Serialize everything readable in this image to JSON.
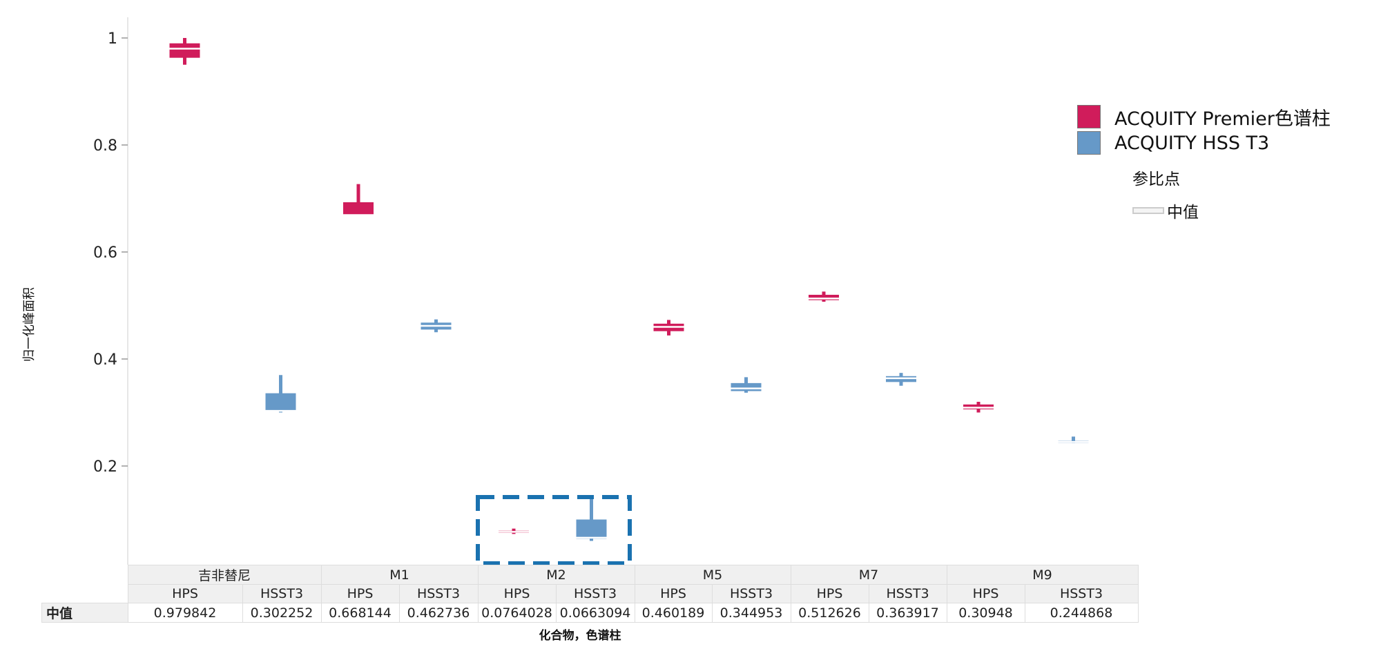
{
  "chart_data": {
    "type": "boxplot",
    "ylabel": "归一化峰面积",
    "xlabel": "化合物，色谱柱",
    "yticks": [
      0.2,
      0.4,
      0.6,
      0.8,
      1
    ],
    "ytick_labels": [
      "0.2",
      "0.4",
      "0.6",
      "0.8",
      "1"
    ],
    "ylim": [
      0.0,
      1.04
    ],
    "grid": false,
    "legend_position": "right",
    "series": [
      {
        "name": "ACQUITY Premier色谱柱",
        "color": "#d01c5b"
      },
      {
        "name": "ACQUITY HSS T3",
        "color": "#6699c8"
      }
    ],
    "groups": [
      "吉非替尼",
      "M1",
      "M2",
      "M5",
      "M7",
      "M9"
    ],
    "columns": [
      "HPS",
      "HSST3",
      "HPS",
      "HSST3",
      "HPS",
      "HSST3",
      "HPS",
      "HSST3",
      "HPS",
      "HSST3",
      "HPS",
      "HSST3"
    ],
    "median_row_label": "中值",
    "medians": [
      "0.979842",
      "0.302252",
      "0.668144",
      "0.462736",
      "0.0764028",
      "0.0663094",
      "0.460189",
      "0.344953",
      "0.512626",
      "0.363917",
      "0.30948",
      "0.244868"
    ],
    "boxes": [
      {
        "group": "吉非替尼",
        "column": "HPS",
        "series": 0,
        "min": 0.95,
        "q1": 0.963,
        "median": 0.98,
        "q3": 0.99,
        "max": 1.0
      },
      {
        "group": "吉非替尼",
        "column": "HSST3",
        "series": 1,
        "min": 0.3,
        "q1": 0.302,
        "median": 0.303,
        "q3": 0.336,
        "max": 0.37
      },
      {
        "group": "M1",
        "column": "HPS",
        "series": 0,
        "min": 0.668,
        "q1": 0.668,
        "median": 0.669,
        "q3": 0.693,
        "max": 0.727
      },
      {
        "group": "M1",
        "column": "HSST3",
        "series": 1,
        "min": 0.45,
        "q1": 0.455,
        "median": 0.462,
        "q3": 0.468,
        "max": 0.474
      },
      {
        "group": "M2",
        "column": "HPS",
        "series": 0,
        "min": 0.073,
        "q1": 0.075,
        "median": 0.077,
        "q3": 0.079,
        "max": 0.083
      },
      {
        "group": "M2",
        "column": "HSST3",
        "series": 1,
        "min": 0.06,
        "q1": 0.064,
        "median": 0.066,
        "q3": 0.1,
        "max": 0.145
      },
      {
        "group": "M5",
        "column": "HPS",
        "series": 0,
        "min": 0.444,
        "q1": 0.452,
        "median": 0.46,
        "q3": 0.466,
        "max": 0.473
      },
      {
        "group": "M5",
        "column": "HSST3",
        "series": 1,
        "min": 0.337,
        "q1": 0.34,
        "median": 0.345,
        "q3": 0.355,
        "max": 0.366
      },
      {
        "group": "M7",
        "column": "HPS",
        "series": 0,
        "min": 0.507,
        "q1": 0.51,
        "median": 0.513,
        "q3": 0.52,
        "max": 0.526
      },
      {
        "group": "M7",
        "column": "HSST3",
        "series": 1,
        "min": 0.35,
        "q1": 0.357,
        "median": 0.364,
        "q3": 0.368,
        "max": 0.374
      },
      {
        "group": "M9",
        "column": "HPS",
        "series": 0,
        "min": 0.3,
        "q1": 0.306,
        "median": 0.309,
        "q3": 0.315,
        "max": 0.32
      },
      {
        "group": "M9",
        "column": "HSST3",
        "series": 1,
        "min": 0.243,
        "q1": 0.244,
        "median": 0.245,
        "q3": 0.247,
        "max": 0.255
      }
    ],
    "highlight": {
      "group": "M2",
      "style": "dashed-box",
      "color": "#1a72b0"
    }
  },
  "legend": {
    "items": [
      {
        "label": "ACQUITY Premier色谱柱",
        "color": "#d01c5b"
      },
      {
        "label": "ACQUITY HSS T3",
        "color": "#6699c8"
      }
    ],
    "reference_title": "参比点",
    "median_label": "中值"
  }
}
